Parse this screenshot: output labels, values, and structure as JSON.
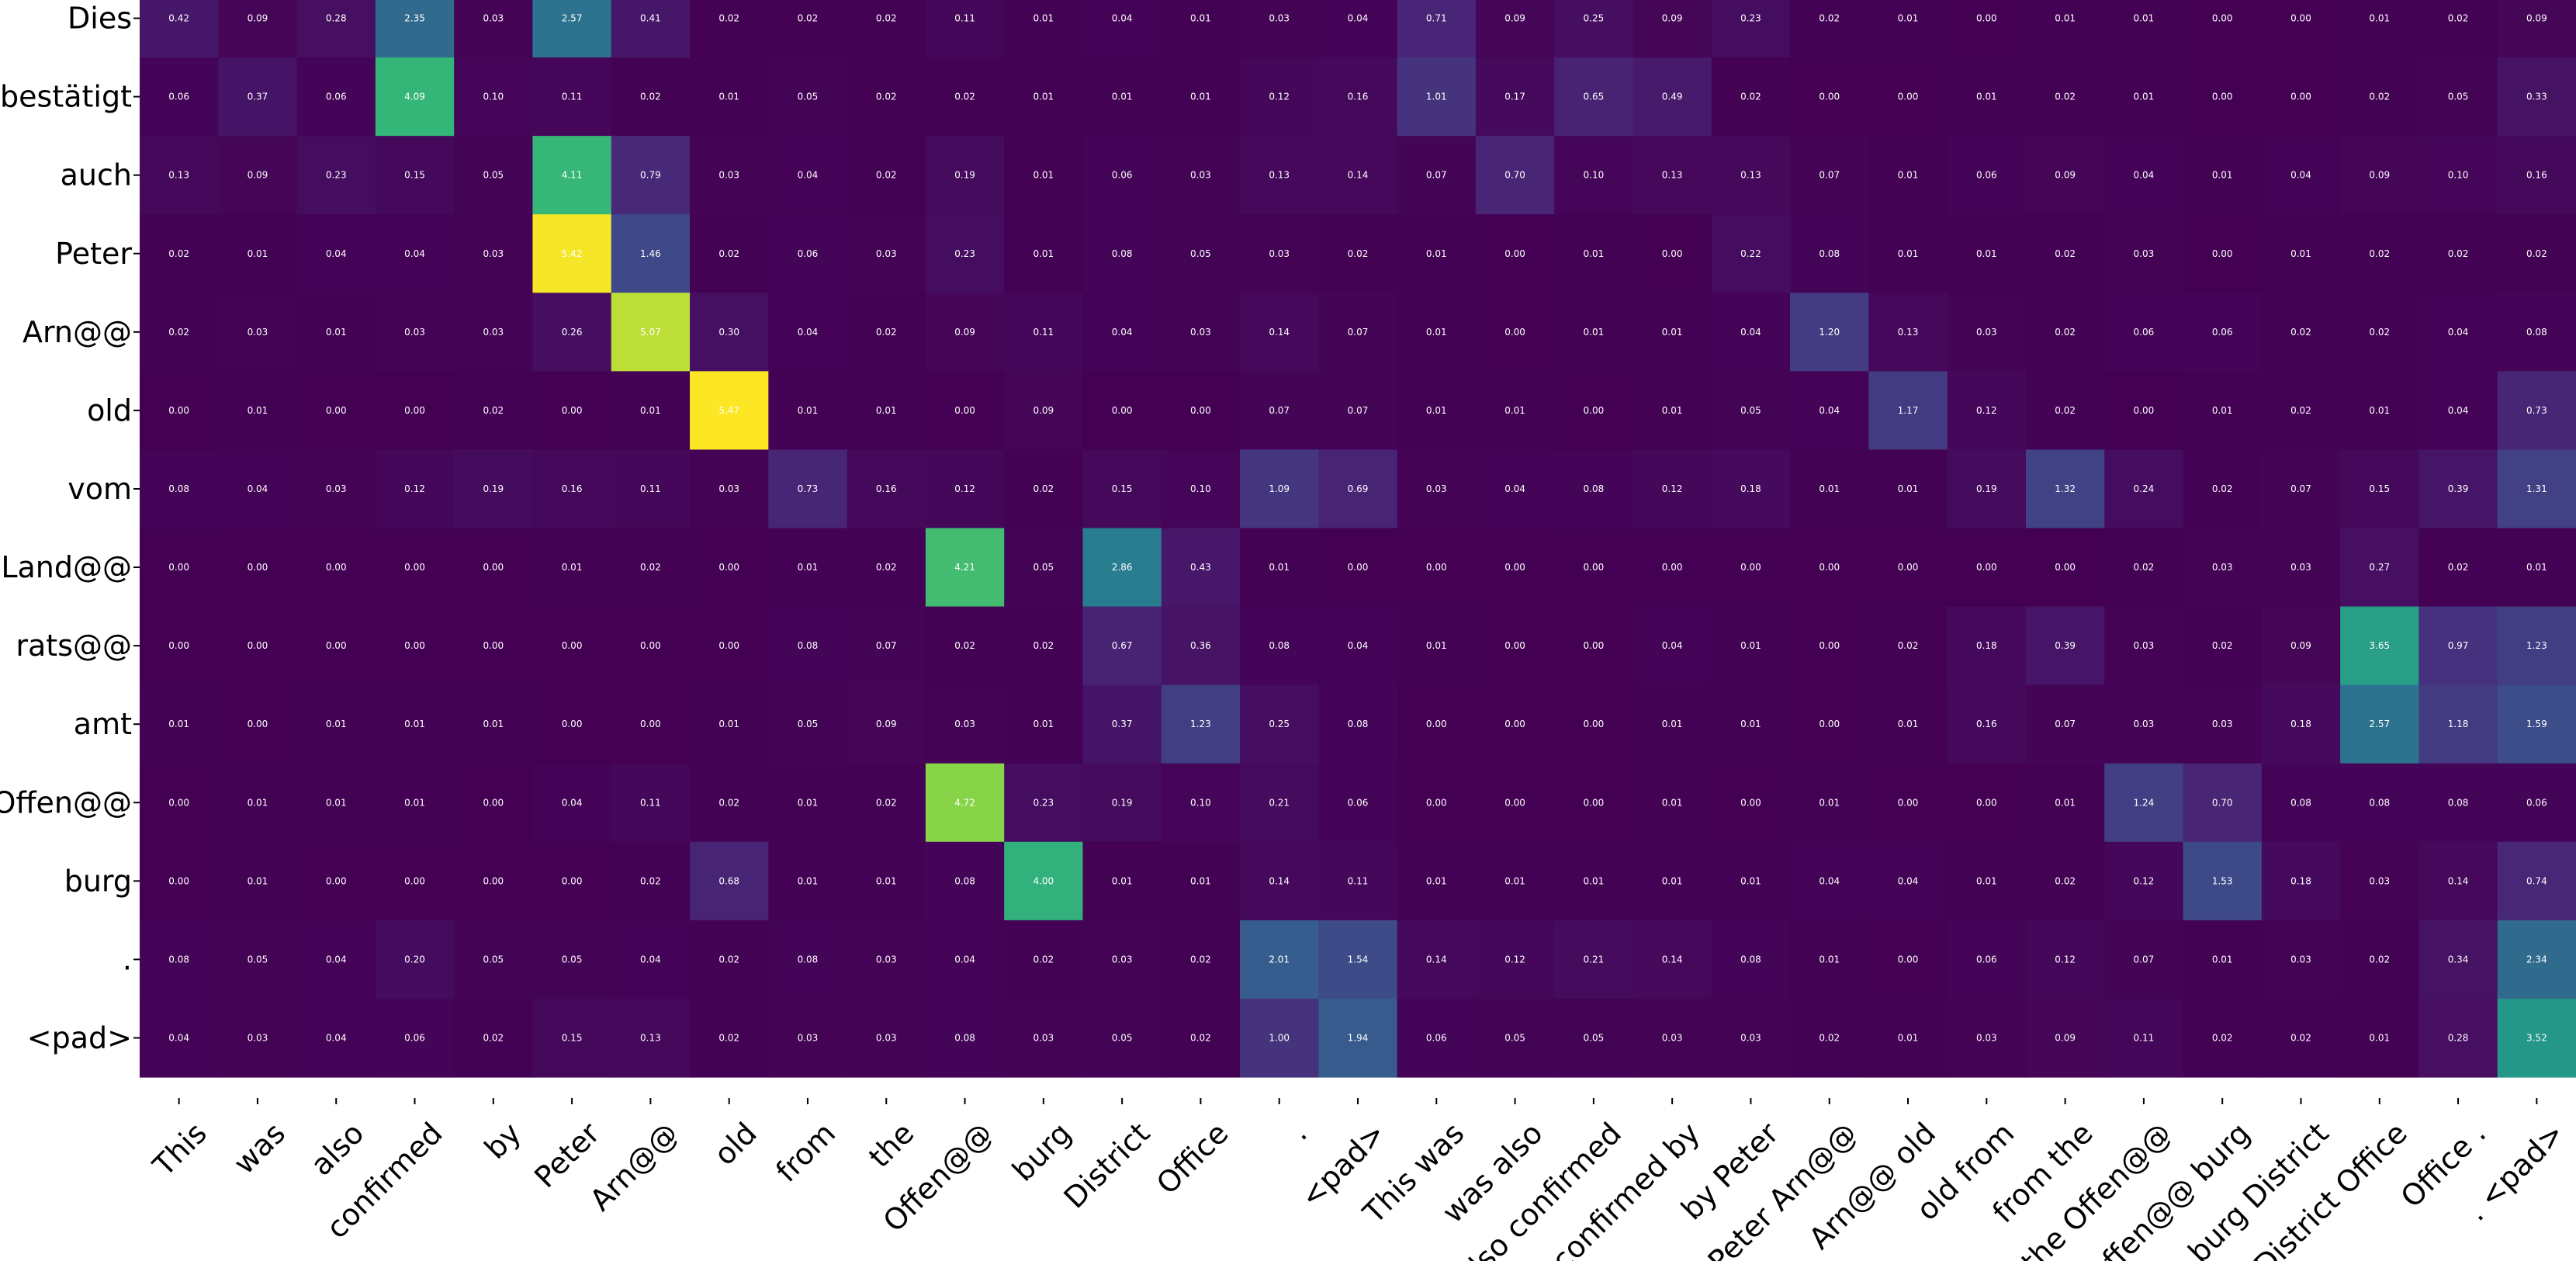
{
  "chart_data": {
    "type": "heatmap",
    "title": "",
    "xlabel": "",
    "ylabel": "",
    "colormap": "viridis",
    "vmin": 0,
    "vmax": 5.47,
    "y_labels": [
      "Dies",
      "bestätigt",
      "auch",
      "Peter",
      "Arn@@",
      "old",
      "vom",
      "Land@@",
      "rats@@",
      "amt",
      "Offen@@",
      "burg",
      ".",
      "<pad>"
    ],
    "x_labels": [
      "This",
      "was",
      "also",
      "confirmed",
      "by",
      "Peter",
      "Arn@@",
      "old",
      "from",
      "the",
      "Offen@@",
      "burg",
      "District",
      "Office",
      ".",
      "<pad>",
      "This was",
      "was also",
      "also confirmed",
      "confirmed by",
      "by Peter",
      "Peter Arn@@",
      "Arn@@ old",
      "old from",
      "from the",
      "the Offen@@",
      "Offen@@ burg",
      "burg District",
      "District Office",
      "Office .",
      ". <pad>"
    ],
    "values": [
      [
        0.42,
        0.09,
        0.28,
        2.35,
        0.03,
        2.57,
        0.41,
        0.02,
        0.02,
        0.02,
        0.11,
        0.01,
        0.04,
        0.01,
        0.03,
        0.04,
        0.71,
        0.09,
        0.25,
        0.09,
        0.23,
        0.02,
        0.01,
        0.0,
        0.01,
        0.01,
        0.0,
        0.0,
        0.01,
        0.02,
        0.09
      ],
      [
        0.06,
        0.37,
        0.06,
        4.09,
        0.1,
        0.11,
        0.02,
        0.01,
        0.05,
        0.02,
        0.02,
        0.01,
        0.01,
        0.01,
        0.12,
        0.16,
        1.01,
        0.17,
        0.65,
        0.49,
        0.02,
        0.0,
        0.0,
        0.01,
        0.02,
        0.01,
        0.0,
        0.0,
        0.02,
        0.05,
        0.33
      ],
      [
        0.13,
        0.09,
        0.23,
        0.15,
        0.05,
        4.11,
        0.79,
        0.03,
        0.04,
        0.02,
        0.19,
        0.01,
        0.06,
        0.03,
        0.13,
        0.14,
        0.07,
        0.7,
        0.1,
        0.13,
        0.13,
        0.07,
        0.01,
        0.06,
        0.09,
        0.04,
        0.01,
        0.04,
        0.09,
        0.1,
        0.16
      ],
      [
        0.02,
        0.01,
        0.04,
        0.04,
        0.03,
        5.42,
        1.46,
        0.02,
        0.06,
        0.03,
        0.23,
        0.01,
        0.08,
        0.05,
        0.03,
        0.02,
        0.01,
        0.0,
        0.01,
        0.0,
        0.22,
        0.08,
        0.01,
        0.01,
        0.02,
        0.03,
        0.0,
        0.01,
        0.02,
        0.02,
        0.02
      ],
      [
        0.02,
        0.03,
        0.01,
        0.03,
        0.03,
        0.26,
        5.07,
        0.3,
        0.04,
        0.02,
        0.09,
        0.11,
        0.04,
        0.03,
        0.14,
        0.07,
        0.01,
        0.0,
        0.01,
        0.01,
        0.04,
        1.2,
        0.13,
        0.03,
        0.02,
        0.06,
        0.06,
        0.02,
        0.02,
        0.04,
        0.08
      ],
      [
        0.0,
        0.01,
        0.0,
        0.0,
        0.02,
        0.0,
        0.01,
        5.47,
        0.01,
        0.01,
        0.0,
        0.09,
        0.0,
        0.0,
        0.07,
        0.07,
        0.01,
        0.01,
        0.0,
        0.01,
        0.05,
        0.04,
        1.17,
        0.12,
        0.02,
        0.0,
        0.01,
        0.02,
        0.01,
        0.04,
        0.73
      ],
      [
        0.08,
        0.04,
        0.03,
        0.12,
        0.19,
        0.16,
        0.11,
        0.03,
        0.73,
        0.16,
        0.12,
        0.02,
        0.15,
        0.1,
        1.09,
        0.69,
        0.03,
        0.04,
        0.08,
        0.12,
        0.18,
        0.01,
        0.01,
        0.19,
        1.32,
        0.24,
        0.02,
        0.07,
        0.15,
        0.39,
        1.31
      ],
      [
        0.0,
        0.0,
        0.0,
        0.0,
        0.0,
        0.01,
        0.02,
        0.0,
        0.01,
        0.02,
        4.21,
        0.05,
        2.86,
        0.43,
        0.01,
        0.0,
        0.0,
        0.0,
        0.0,
        0.0,
        0.0,
        0.0,
        0.0,
        0.0,
        0.0,
        0.02,
        0.03,
        0.03,
        0.27,
        0.02,
        0.01
      ],
      [
        0.0,
        0.0,
        0.0,
        0.0,
        0.0,
        0.0,
        0.0,
        0.0,
        0.08,
        0.07,
        0.02,
        0.02,
        0.67,
        0.36,
        0.08,
        0.04,
        0.01,
        0.0,
        0.0,
        0.04,
        0.01,
        0.0,
        0.02,
        0.18,
        0.39,
        0.03,
        0.02,
        0.09,
        3.65,
        0.97,
        1.23
      ],
      [
        0.01,
        0.0,
        0.01,
        0.01,
        0.01,
        0.0,
        0.0,
        0.01,
        0.05,
        0.09,
        0.03,
        0.01,
        0.37,
        1.23,
        0.25,
        0.08,
        0.0,
        0.0,
        0.0,
        0.01,
        0.01,
        0.0,
        0.01,
        0.16,
        0.07,
        0.03,
        0.03,
        0.18,
        2.57,
        1.18,
        1.59
      ],
      [
        0.0,
        0.01,
        0.01,
        0.01,
        0.0,
        0.04,
        0.11,
        0.02,
        0.01,
        0.02,
        4.72,
        0.23,
        0.19,
        0.1,
        0.21,
        0.06,
        0.0,
        0.0,
        0.0,
        0.01,
        0.0,
        0.01,
        0.0,
        0.0,
        0.01,
        1.24,
        0.7,
        0.08,
        0.08,
        0.08,
        0.06
      ],
      [
        0.0,
        0.01,
        0.0,
        0.0,
        0.0,
        0.0,
        0.02,
        0.68,
        0.01,
        0.01,
        0.08,
        4.0,
        0.01,
        0.01,
        0.14,
        0.11,
        0.01,
        0.01,
        0.01,
        0.01,
        0.01,
        0.04,
        0.04,
        0.01,
        0.02,
        0.12,
        1.53,
        0.18,
        0.03,
        0.14,
        0.74
      ],
      [
        0.08,
        0.05,
        0.04,
        0.2,
        0.05,
        0.05,
        0.04,
        0.02,
        0.08,
        0.03,
        0.04,
        0.02,
        0.03,
        0.02,
        2.01,
        1.54,
        0.14,
        0.12,
        0.21,
        0.14,
        0.08,
        0.01,
        0.0,
        0.06,
        0.12,
        0.07,
        0.01,
        0.03,
        0.02,
        0.34,
        2.34
      ],
      [
        0.04,
        0.03,
        0.04,
        0.06,
        0.02,
        0.15,
        0.13,
        0.02,
        0.03,
        0.03,
        0.08,
        0.03,
        0.05,
        0.02,
        1.0,
        1.94,
        0.06,
        0.05,
        0.05,
        0.03,
        0.03,
        0.02,
        0.01,
        0.03,
        0.09,
        0.11,
        0.02,
        0.02,
        0.01,
        0.28,
        3.52
      ]
    ]
  }
}
